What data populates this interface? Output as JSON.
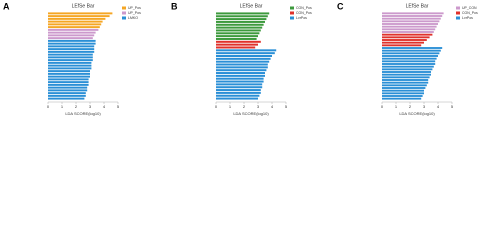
{
  "chart_data": [
    {
      "type": "bar",
      "panel": "A",
      "title": "LEfSe Bar",
      "xlabel": "LDA SCORE(log10)",
      "xlim": [
        0,
        5
      ],
      "xticks": [
        0,
        1,
        2,
        3,
        4,
        5
      ],
      "series": [
        {
          "name": "UP_Pos",
          "color": "#f5a623",
          "values": [
            4.6,
            4.4,
            4.1,
            3.9,
            3.8,
            3.7
          ]
        },
        {
          "name": "UP_Pos",
          "color": "#cc99cc",
          "values": [
            3.6,
            3.4,
            3.3,
            3.2
          ]
        },
        {
          "name": "LMKO",
          "color": "#2a8fd6",
          "values": [
            3.4,
            3.4,
            3.3,
            3.3,
            3.3,
            3.2,
            3.2,
            3.2,
            3.1,
            3.1,
            3.1,
            3.0,
            3.0,
            3.0,
            2.9,
            2.9,
            2.9,
            2.8,
            2.8,
            2.7,
            2.7,
            2.6
          ]
        }
      ]
    },
    {
      "type": "bar",
      "panel": "B",
      "title": "LEfSe Bar",
      "xlabel": "LDA SCORE(log10)",
      "xlim": [
        0,
        5
      ],
      "xticks": [
        0,
        1,
        2,
        3,
        4,
        5
      ],
      "series": [
        {
          "name": "CON_Pos",
          "color": "#3d9a3d",
          "values": [
            3.8,
            3.7,
            3.6,
            3.5,
            3.4,
            3.3,
            3.2,
            3.1,
            3.0,
            2.9
          ]
        },
        {
          "name": "CON_Pos",
          "color": "#e0312b",
          "values": [
            3.2,
            3.0,
            2.8
          ]
        },
        {
          "name": "LvrPos",
          "color": "#2a8fd6",
          "values": [
            4.3,
            4.2,
            4.0,
            3.9,
            3.8,
            3.7,
            3.7,
            3.6,
            3.5,
            3.5,
            3.4,
            3.4,
            3.3,
            3.3,
            3.2,
            3.2,
            3.1,
            3.0
          ]
        }
      ]
    },
    {
      "type": "bar",
      "panel": "C",
      "title": "LEfSe Bar",
      "xlabel": "LDA SCORE(log10)",
      "xlim": [
        0,
        5
      ],
      "xticks": [
        0,
        1,
        2,
        3,
        4,
        5
      ],
      "series": [
        {
          "name": "UP_CON",
          "color": "#cc99cc",
          "values": [
            4.4,
            4.3,
            4.2,
            4.1,
            4.0,
            3.9,
            3.8,
            3.7
          ]
        },
        {
          "name": "CON_Pos",
          "color": "#e0312b",
          "values": [
            3.6,
            3.4,
            3.2,
            3.0,
            2.8
          ]
        },
        {
          "name": "LvrPos",
          "color": "#2a8fd6",
          "values": [
            4.3,
            4.2,
            4.1,
            4.0,
            3.9,
            3.8,
            3.8,
            3.7,
            3.6,
            3.5,
            3.5,
            3.4,
            3.3,
            3.3,
            3.2,
            3.1,
            3.0,
            3.0,
            2.9,
            2.8
          ]
        }
      ]
    }
  ]
}
